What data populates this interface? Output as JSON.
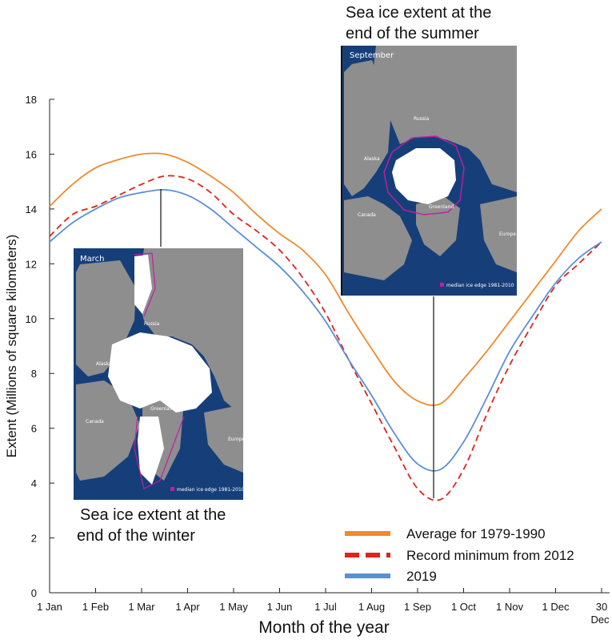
{
  "chart_data": {
    "type": "line",
    "xlabel": "Month of the year",
    "ylabel": "Extent (Millions of square kilometers)",
    "ylim": [
      0,
      18
    ],
    "yticks": [
      0,
      2,
      4,
      6,
      8,
      10,
      12,
      14,
      16,
      18
    ],
    "x_tick_labels": [
      "1 Jan",
      "1 Feb",
      "1 Mar",
      "1 Apr",
      "1 May",
      "1 Jun",
      "1 Jul",
      "1 Aug",
      "1 Sep",
      "1 Oct",
      "1 Nov",
      "1 Dec",
      "30"
    ],
    "x_tick_sublabel": "Dec",
    "grid": false,
    "legend_position": "bottom-right",
    "x": [
      "1 Jan",
      "15 Jan",
      "1 Feb",
      "15 Feb",
      "1 Mar",
      "15 Mar",
      "1 Apr",
      "15 Apr",
      "1 May",
      "15 May",
      "1 Jun",
      "15 Jun",
      "1 Jul",
      "15 Jul",
      "1 Aug",
      "15 Aug",
      "1 Sep",
      "15 Sep",
      "1 Oct",
      "15 Oct",
      "1 Nov",
      "15 Nov",
      "1 Dec",
      "15 Dec",
      "30 Dec"
    ],
    "series": [
      {
        "name": "Average for 1979-1990",
        "color": "#f08a2c",
        "style": "solid",
        "values": [
          14.1,
          14.9,
          15.5,
          15.8,
          16.0,
          16.0,
          15.7,
          15.2,
          14.6,
          13.8,
          13.1,
          12.5,
          11.6,
          10.2,
          8.9,
          7.7,
          7.0,
          6.9,
          7.8,
          8.8,
          9.9,
          11.0,
          12.1,
          13.2,
          14.0
        ]
      },
      {
        "name": "Record minimum from 2012",
        "color": "#e0231b",
        "style": "dashed",
        "values": [
          13.0,
          13.8,
          14.1,
          14.5,
          14.9,
          15.2,
          15.1,
          14.6,
          13.8,
          13.2,
          12.5,
          11.5,
          10.2,
          8.5,
          6.9,
          5.3,
          3.8,
          3.4,
          4.5,
          6.5,
          8.3,
          9.8,
          11.2,
          12.0,
          12.8
        ]
      },
      {
        "name": "2019",
        "color": "#5b8fd4",
        "style": "solid",
        "values": [
          12.8,
          13.5,
          14.0,
          14.4,
          14.6,
          14.7,
          14.5,
          14.0,
          13.3,
          12.6,
          11.9,
          11.0,
          9.9,
          8.5,
          7.2,
          5.8,
          4.7,
          4.5,
          5.5,
          7.1,
          8.8,
          10.1,
          11.3,
          12.2,
          12.8
        ]
      }
    ]
  },
  "annotations": {
    "top_caption_line1": "Sea ice extent at the",
    "top_caption_line2": "end of the summer",
    "bottom_caption_line1": "Sea ice extent at the",
    "bottom_caption_line2": "end of the winter"
  },
  "inset_september": {
    "title": "September",
    "labels": [
      "Russia",
      "Alaska",
      "Canada",
      "Greenland",
      "Europe"
    ],
    "legend": "median ice edge 1981-2010",
    "ocean_color": "#163f7a",
    "land_color": "#8e8e8e",
    "edge_color": "#c41ca0"
  },
  "inset_march": {
    "title": "March",
    "labels": [
      "Russia",
      "Alaska",
      "Canada",
      "Greenland",
      "Europe"
    ],
    "legend": "median ice edge 1981-2010",
    "ocean_color": "#163f7a",
    "land_color": "#8e8e8e",
    "edge_color": "#c41ca0"
  }
}
